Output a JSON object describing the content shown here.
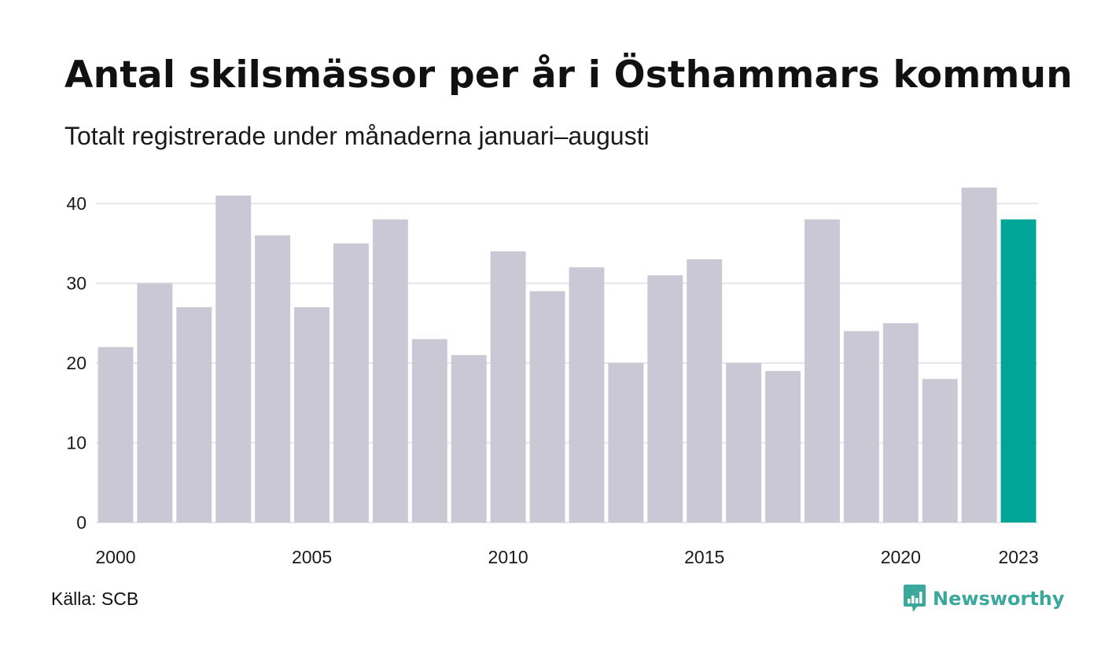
{
  "title": "Antal skilsmässor per år i Östhammars kommun",
  "subtitle": "Totalt registrerade under månaderna januari–augusti",
  "source": "Källa: SCB",
  "brand": {
    "name": "Newsworthy",
    "icon": "newsworthy-logo-icon",
    "color": "#3aa89a"
  },
  "colors": {
    "bar": "#c9c8d4",
    "highlight": "#00a597",
    "grid": "#e6e6ea",
    "text": "#1a1a1a"
  },
  "chart_data": {
    "type": "bar",
    "title": "Antal skilsmässor per år i Östhammars kommun",
    "subtitle": "Totalt registrerade under månaderna januari–augusti",
    "xlabel": "",
    "ylabel": "",
    "categories": [
      2000,
      2001,
      2002,
      2003,
      2004,
      2005,
      2006,
      2007,
      2008,
      2009,
      2010,
      2011,
      2012,
      2013,
      2014,
      2015,
      2016,
      2017,
      2018,
      2019,
      2020,
      2021,
      2022,
      2023
    ],
    "values": [
      22,
      30,
      27,
      41,
      36,
      27,
      35,
      38,
      23,
      21,
      34,
      29,
      32,
      20,
      31,
      33,
      20,
      19,
      38,
      24,
      25,
      18,
      42,
      38
    ],
    "highlight": 2023,
    "ylim": [
      0,
      42
    ],
    "yticks": [
      0,
      10,
      20,
      30,
      40
    ],
    "xticks": [
      2000,
      2005,
      2010,
      2015,
      2020,
      2023
    ],
    "grid": true,
    "legend": "none"
  }
}
